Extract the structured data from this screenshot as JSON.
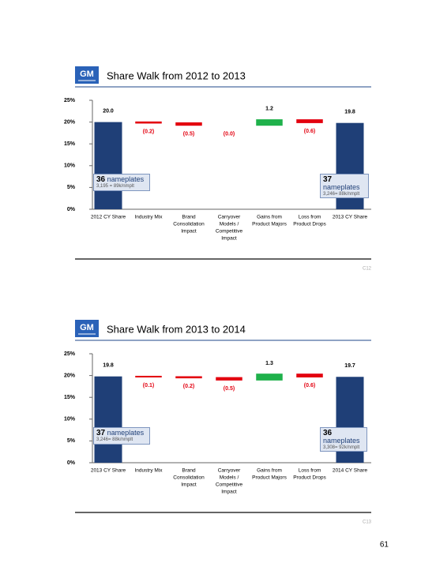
{
  "chart_data": [
    {
      "type": "waterfall",
      "logo": "GM",
      "title": "Share Walk from 2012 to 2013",
      "categories": [
        [
          "2012 CY Share"
        ],
        [
          "Industry Mix"
        ],
        [
          "Brand",
          "Consolidation",
          "Impact"
        ],
        [
          "Carryover",
          "Models /",
          "Competitive",
          "Impact"
        ],
        [
          "Gains from",
          "Product Majors"
        ],
        [
          "Loss from",
          "Product Drops"
        ],
        [
          "2013 CY Share"
        ]
      ],
      "values": [
        20.0,
        -0.2,
        -0.5,
        -0.0,
        1.2,
        -0.6,
        19.8
      ],
      "value_labels": [
        "20.0",
        "(0.2)",
        "(0.5)",
        "(0.0)",
        "1.2",
        "(0.6)",
        "19.8"
      ],
      "totals": [
        0,
        6
      ],
      "colors": {
        "total": "#1f3f77",
        "increase": "#1fb14b",
        "decrease": "#e3000f"
      },
      "ylim": [
        0,
        25
      ],
      "yticks": [
        {
          "value": 0,
          "label": "0%"
        },
        {
          "value": 5,
          "label": "5%"
        },
        {
          "value": 10,
          "label": "10%"
        },
        {
          "value": 15,
          "label": "15%"
        },
        {
          "value": 20,
          "label": "20%"
        },
        {
          "value": 25,
          "label": "25%"
        }
      ],
      "annotations": [
        {
          "count": "36",
          "text": "nameplates",
          "detail": "3,195 = 89k/nmplt"
        },
        {
          "count": "37",
          "text": "nameplates",
          "detail": "3,246= 88k/nmplt"
        }
      ],
      "slide": "C12"
    },
    {
      "type": "waterfall",
      "logo": "GM",
      "title": "Share Walk from 2013 to 2014",
      "categories": [
        [
          "2013 CY Share"
        ],
        [
          "Industry Mix"
        ],
        [
          "Brand",
          "Consolidation",
          "Impact"
        ],
        [
          "Carryover",
          "Models /",
          "Competitive",
          "Impact"
        ],
        [
          "Gains from",
          "Product Majors"
        ],
        [
          "Loss from",
          "Product Drops"
        ],
        [
          "2014 CY Share"
        ]
      ],
      "values": [
        19.8,
        -0.1,
        -0.2,
        -0.5,
        1.3,
        -0.6,
        19.7
      ],
      "value_labels": [
        "19.8",
        "(0.1)",
        "(0.2)",
        "(0.5)",
        "1.3",
        "(0.6)",
        "19.7"
      ],
      "totals": [
        0,
        6
      ],
      "colors": {
        "total": "#1f3f77",
        "increase": "#1fb14b",
        "decrease": "#e3000f"
      },
      "ylim": [
        0,
        25
      ],
      "yticks": [
        {
          "value": 0,
          "label": "0%"
        },
        {
          "value": 5,
          "label": "5%"
        },
        {
          "value": 10,
          "label": "10%"
        },
        {
          "value": 15,
          "label": "15%"
        },
        {
          "value": 20,
          "label": "20%"
        },
        {
          "value": 25,
          "label": "25%"
        }
      ],
      "annotations": [
        {
          "count": "37",
          "text": "nameplates",
          "detail": "3,246= 88k/nmplt"
        },
        {
          "count": "36",
          "text": "nameplates",
          "detail": "3,308= 92k/nmplt"
        }
      ],
      "slide": "C13"
    }
  ],
  "page": {
    "number": "61"
  }
}
